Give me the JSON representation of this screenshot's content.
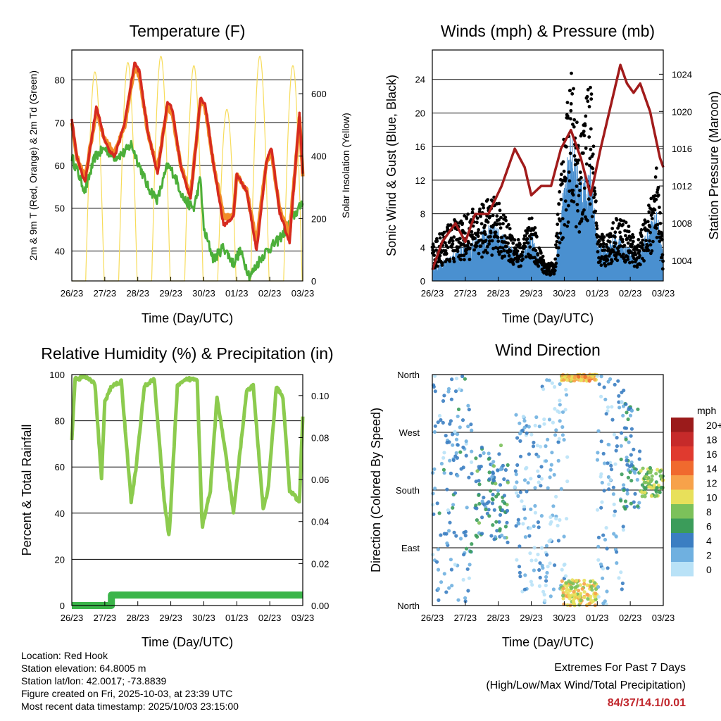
{
  "chart_data": [
    {
      "type": "line",
      "title": "Temperature (F)",
      "xlabel": "Time (Day/UTC)",
      "ylabel": "2m & 9m T (Red, Orange) & 2m Td (Green)",
      "y2label": "Solar Insolation (Yellow)",
      "categories": [
        "26/23",
        "27/23",
        "28/23",
        "29/23",
        "30/23",
        "01/23",
        "02/23",
        "03/23"
      ],
      "ylim": [
        33,
        87
      ],
      "yticks": [
        40,
        50,
        60,
        70,
        80
      ],
      "y2lim": [
        0,
        740
      ],
      "y2ticks": [
        0,
        200,
        400,
        600
      ],
      "colors": {
        "t2": "#d62a1f",
        "t9": "#f28c28",
        "td": "#4caf3a",
        "solar": "#f7dc5a"
      },
      "series": [
        {
          "name": "2m T",
          "x": [
            0,
            0.15,
            0.4,
            0.75,
            0.95,
            1.1,
            1.3,
            1.6,
            1.9,
            2.05,
            2.3,
            2.6,
            2.9,
            3.05,
            3.3,
            3.6,
            3.9,
            4.05,
            4.3,
            4.6,
            4.9,
            5.0,
            5.3,
            5.6,
            5.9,
            6.05,
            6.3,
            6.6,
            6.9,
            7.0
          ],
          "values": [
            71,
            62,
            56,
            74,
            67,
            64,
            62,
            70,
            84,
            82,
            68,
            58,
            75,
            73,
            60,
            52,
            76,
            74,
            60,
            46,
            48,
            58,
            54,
            40,
            61,
            64,
            49,
            42,
            72,
            58
          ]
        },
        {
          "name": "9m T",
          "x": [
            0,
            0.15,
            0.4,
            0.75,
            0.95,
            1.1,
            1.3,
            1.6,
            1.9,
            2.05,
            2.3,
            2.6,
            2.9,
            3.05,
            3.3,
            3.6,
            3.9,
            4.05,
            4.3,
            4.6,
            4.9,
            5.0,
            5.3,
            5.6,
            5.9,
            6.05,
            6.3,
            6.6,
            6.9,
            7.0
          ],
          "values": [
            70,
            62,
            57,
            73,
            67,
            65,
            63,
            69,
            83,
            81,
            68,
            59,
            74,
            72,
            60,
            53,
            75,
            73,
            60,
            48,
            48,
            58,
            54,
            42,
            61,
            63,
            50,
            44,
            71,
            58
          ]
        },
        {
          "name": "2m Td",
          "x": [
            0,
            0.2,
            0.4,
            0.7,
            1.0,
            1.3,
            1.6,
            1.8,
            2.0,
            2.3,
            2.6,
            2.9,
            3.1,
            3.4,
            3.7,
            3.9,
            4.0,
            4.3,
            4.6,
            4.9,
            5.1,
            5.4,
            5.7,
            5.9,
            6.2,
            6.5,
            6.7,
            6.9,
            7.0
          ],
          "values": [
            62,
            58,
            54,
            62,
            64,
            62,
            63,
            65,
            61,
            55,
            52,
            60,
            58,
            52,
            50,
            57,
            45,
            38,
            41,
            37,
            40,
            34,
            38,
            40,
            42,
            45,
            48,
            50,
            52
          ]
        }
      ],
      "solar_series": {
        "name": "Solar Insolation",
        "peaks": [
          0.7,
          1.7,
          2.7,
          3.7,
          4.7,
          5.7,
          6.7
        ],
        "values": [
          670,
          700,
          720,
          690,
          550,
          720,
          690
        ]
      }
    },
    {
      "type": "line",
      "title": "Winds (mph) & Pressure (mb)",
      "xlabel": "Time (Day/UTC)",
      "ylabel": "Sonic Wind & Gust (Blue, Black)",
      "y2label": "Station Pressure (Maroon)",
      "categories": [
        "26/23",
        "27/23",
        "28/23",
        "29/23",
        "30/23",
        "01/23",
        "02/23",
        "03/23"
      ],
      "ylim": [
        0,
        27.5
      ],
      "yticks": [
        0,
        4,
        8,
        12,
        16,
        20,
        24
      ],
      "y2lim": [
        1001.8,
        1026.6
      ],
      "y2ticks": [
        1004,
        1008,
        1012,
        1016,
        1020,
        1024
      ],
      "colors": {
        "wind": "#4a90d0",
        "gust": "#000000",
        "pressure": "#a11b1b"
      },
      "series": [
        {
          "name": "Wind",
          "x": [
            0,
            0.5,
            1,
            1.5,
            1.9,
            2.3,
            2.7,
            3.0,
            3.4,
            3.7,
            3.9,
            4.2,
            4.5,
            4.8,
            5.0,
            5.3,
            5.6,
            5.9,
            6.2,
            6.5,
            6.8,
            7.0
          ],
          "values": [
            1,
            2,
            3,
            4,
            5,
            3,
            2,
            4,
            1,
            1,
            6,
            12,
            8,
            10,
            3,
            3,
            4,
            3,
            2,
            4,
            6,
            2
          ]
        },
        {
          "name": "Gust",
          "x": [
            0,
            0.5,
            1,
            1.5,
            1.9,
            2.3,
            2.7,
            3.0,
            3.4,
            3.7,
            3.9,
            4.2,
            4.5,
            4.8,
            5.0,
            5.3,
            5.6,
            5.9,
            6.2,
            6.5,
            6.8,
            7.0
          ],
          "values": [
            4,
            6,
            7,
            8,
            9,
            6,
            4,
            7,
            2,
            2,
            12,
            22,
            15,
            22,
            5,
            5,
            7,
            6,
            4,
            7,
            12,
            3
          ]
        },
        {
          "name": "Station Pressure",
          "x": [
            0,
            0.3,
            0.7,
            1.0,
            1.3,
            1.7,
            2.1,
            2.5,
            2.8,
            3.0,
            3.3,
            3.6,
            3.9,
            4.2,
            4.5,
            4.8,
            5.1,
            5.5,
            5.7,
            5.9,
            6.1,
            6.3,
            6.6,
            6.9,
            7.0
          ],
          "values": [
            1003,
            1006,
            1008,
            1006,
            1009,
            1009,
            1012,
            1016,
            1014,
            1011,
            1012,
            1012,
            1016,
            1018,
            1015,
            1011,
            1016,
            1022,
            1025,
            1023,
            1022,
            1023,
            1020,
            1015,
            1014
          ]
        }
      ]
    },
    {
      "type": "line",
      "title": "Relative Humidity (%) & Precipitation (in)",
      "xlabel": "Time (Day/UTC)",
      "ylabel": "Percent & Total Rainfall",
      "categories": [
        "26/23",
        "27/23",
        "28/23",
        "29/23",
        "30/23",
        "01/23",
        "02/23",
        "03/23"
      ],
      "ylim": [
        0,
        100
      ],
      "yticks": [
        0,
        20,
        40,
        60,
        80,
        100
      ],
      "y2lim": [
        0,
        0.11
      ],
      "y2ticks": [
        "0.00",
        "0.02",
        "0.04",
        "0.06",
        "0.08",
        "0.10"
      ],
      "colors": {
        "rh": "#8ccb4e",
        "precip": "#3bb54a"
      },
      "series": [
        {
          "name": "RH",
          "x": [
            0,
            0.1,
            0.4,
            0.7,
            0.9,
            1.0,
            1.2,
            1.5,
            1.8,
            1.95,
            2.2,
            2.5,
            2.8,
            2.95,
            3.2,
            3.5,
            3.8,
            3.95,
            4.2,
            4.4,
            4.6,
            4.9,
            5.05,
            5.3,
            5.5,
            5.8,
            5.95,
            6.2,
            6.4,
            6.6,
            6.9,
            7.0
          ],
          "values": [
            72,
            98,
            99,
            96,
            55,
            88,
            95,
            97,
            45,
            60,
            95,
            98,
            45,
            30,
            95,
            98,
            98,
            34,
            50,
            90,
            72,
            40,
            60,
            93,
            95,
            42,
            50,
            95,
            90,
            50,
            45,
            82
          ]
        },
        {
          "name": "Total Rainfall",
          "x": [
            0,
            1.2,
            1.2,
            7.0
          ],
          "values": [
            0,
            0,
            0.005,
            0.005
          ]
        }
      ]
    },
    {
      "type": "scatter",
      "title": "Wind Direction",
      "xlabel": "Time (Day/UTC)",
      "ylabel": "Direction (Colored By Speed)",
      "categories": [
        "26/23",
        "27/23",
        "28/23",
        "29/23",
        "30/23",
        "01/23",
        "02/23",
        "03/23"
      ],
      "direction_labels": [
        "North",
        "East",
        "South",
        "West",
        "North"
      ],
      "ylim": [
        0,
        360
      ],
      "legend": {
        "title": "mph",
        "labels": [
          "20+",
          "18",
          "16",
          "14",
          "12",
          "10",
          "8",
          "6",
          "4",
          "2",
          "0"
        ],
        "colors": [
          "#9b1b1b",
          "#c62a2a",
          "#e03a2f",
          "#f06a2e",
          "#f7a24a",
          "#e8e05a",
          "#7cc15a",
          "#3b9c5a",
          "#3b7ec2",
          "#6fb0e0",
          "#b9e2f7"
        ]
      },
      "clusters": [
        {
          "x": [
            0.0,
            1.2
          ],
          "dir": [
            0,
            360
          ],
          "speed": 3
        },
        {
          "x": [
            1.3,
            2.3
          ],
          "dir": [
            90,
            250
          ],
          "speed": 5
        },
        {
          "x": [
            2.5,
            3.3
          ],
          "dir": [
            20,
            300
          ],
          "speed": 2
        },
        {
          "x": [
            3.3,
            4.1
          ],
          "dir": [
            0,
            360
          ],
          "speed": 1
        },
        {
          "x": [
            3.9,
            5.0
          ],
          "dir": [
            0,
            40
          ],
          "speed": 10
        },
        {
          "x": [
            3.9,
            5.0
          ],
          "dir": [
            350,
            360
          ],
          "speed": 11
        },
        {
          "x": [
            5.0,
            5.8
          ],
          "dir": [
            0,
            360
          ],
          "speed": 2
        },
        {
          "x": [
            5.7,
            6.3
          ],
          "dir": [
            150,
            320
          ],
          "speed": 4
        },
        {
          "x": [
            6.3,
            7.0
          ],
          "dir": [
            170,
            215
          ],
          "speed": 8
        }
      ]
    }
  ],
  "info": {
    "location": "Location: Red Hook",
    "elevation": "Station elevation: 64.8005 m",
    "latlon": "Station lat/lon: 42.0017; -73.8839",
    "created": "Figure created on Fri, 2025-10-03, at 23:39 UTC",
    "recent": "Most recent data timestamp: 2025/10/03 23:15:00"
  },
  "extremes": {
    "title": "Extremes For Past 7 Days",
    "subtitle": "(High/Low/Max Wind/Total Precipitation)",
    "values": "84/37/14.1/0.01"
  }
}
